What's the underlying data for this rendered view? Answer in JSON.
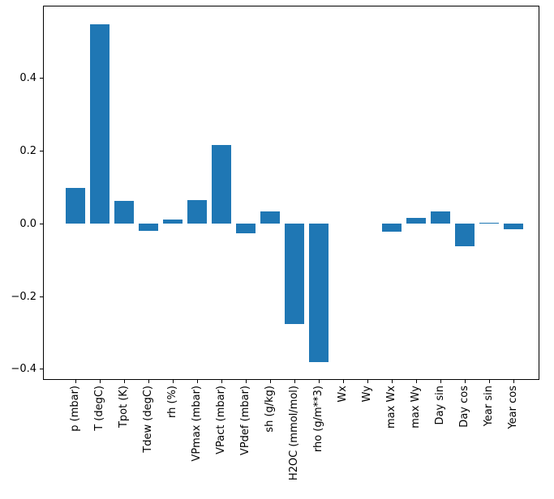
{
  "figure": {
    "background_color": "#ffffff",
    "spine_color": "#000000",
    "text_color": "#000000"
  },
  "chart_data": {
    "type": "bar",
    "title": "",
    "xlabel": "",
    "ylabel": "",
    "bar_color": "#1f77b4",
    "grid": false,
    "legend": "none",
    "x_tick_rotation": 90,
    "categories": [
      "p (mbar)",
      "T (degC)",
      "Tpot (K)",
      "Tdew (degC)",
      "rh (%)",
      "VPmax (mbar)",
      "VPact (mbar)",
      "VPdef (mbar)",
      "sh (g/kg)",
      "H2OC (mmol/mol)",
      "rho (g/m**3)",
      "Wx",
      "Wy",
      "max Wx",
      "max Wy",
      "Day sin",
      "Day cos",
      "Year sin",
      "Year cos"
    ],
    "values": [
      0.098,
      0.549,
      0.063,
      -0.019,
      0.013,
      0.066,
      0.218,
      -0.026,
      0.034,
      -0.276,
      -0.381,
      0.0,
      0.0,
      -0.021,
      0.017,
      0.034,
      -0.061,
      0.002,
      -0.015
    ],
    "ylim": [
      -0.429,
      0.6
    ],
    "yticks": [
      0.4,
      0.2,
      0.0,
      -0.2,
      -0.4
    ],
    "ytick_labels": [
      "0.4",
      "0.2",
      "0.0",
      "−0.2",
      "−0.4"
    ]
  }
}
